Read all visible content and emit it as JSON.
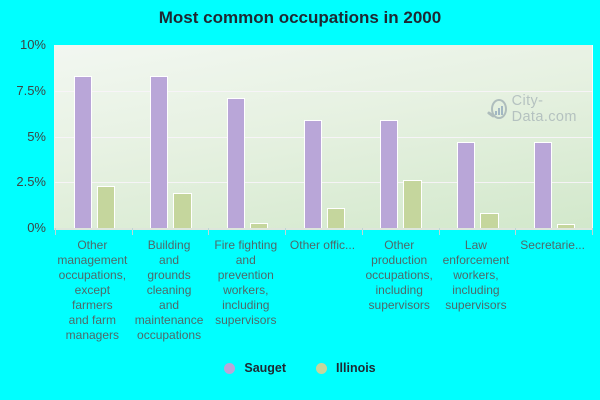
{
  "watermark": {
    "text": "City-Data.com",
    "icon": "magnifier-barchart-icon"
  },
  "colors": {
    "page_background": "#00ffff",
    "plot_gradient_top": "#f2f7f1",
    "plot_gradient_bottom": "#d2e8cb",
    "gridline": "#f8f4fa",
    "title_text": "#1e2832",
    "ytick_text": "#3d4444",
    "category_text": "#4e6969",
    "watermark_text": "#9daab1",
    "sauget_bar": "#b9a6d8",
    "illinois_bar": "#c5d69d"
  },
  "chart_data": {
    "type": "bar",
    "title": "Most common occupations in 2000",
    "categories": [
      "Other\nmanagement\noccupations,\nexcept\nfarmers\nand farm\nmanagers",
      "Building\nand\ngrounds\ncleaning\nand\nmaintenance\noccupations",
      "Fire fighting\nand\nprevention\nworkers,\nincluding\nsupervisors",
      "Other offic...",
      "Other\nproduction\noccupations,\nincluding\nsupervisors",
      "Law\nenforcement\nworkers,\nincluding\nsupervisors",
      "Secretarie..."
    ],
    "series": [
      {
        "name": "Sauget",
        "color": "#b9a6d8",
        "values": [
          8.3,
          8.3,
          7.1,
          5.9,
          5.9,
          4.7,
          4.7
        ]
      },
      {
        "name": "Illinois",
        "color": "#c5d69d",
        "values": [
          2.3,
          1.9,
          0.25,
          1.1,
          2.6,
          0.8,
          0.2
        ]
      }
    ],
    "xlabel": "",
    "ylabel": "",
    "ylim": [
      0,
      10
    ],
    "yticks": [
      {
        "label": "10%",
        "value": 10
      },
      {
        "label": "7.5%",
        "value": 7.5
      },
      {
        "label": "5%",
        "value": 5
      },
      {
        "label": "2.5%",
        "value": 2.5
      },
      {
        "label": "0%",
        "value": 0
      }
    ],
    "grid": true,
    "legend_position": "bottom"
  }
}
